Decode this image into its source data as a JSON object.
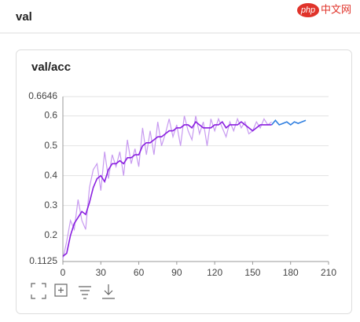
{
  "header": {
    "title": "val"
  },
  "watermark": {
    "logo": "php",
    "text": "中文网"
  },
  "chart_data": {
    "type": "line",
    "title": "val/acc",
    "x": [
      0,
      3,
      6,
      9,
      12,
      15,
      18,
      21,
      24,
      27,
      30,
      33,
      36,
      39,
      42,
      45,
      48,
      51,
      54,
      57,
      60,
      63,
      66,
      69,
      72,
      75,
      78,
      81,
      84,
      87,
      90,
      93,
      96,
      99,
      102,
      105,
      108,
      111,
      114,
      117,
      120,
      123,
      126,
      129,
      132,
      135,
      138,
      141,
      144,
      147,
      150,
      153,
      156,
      159,
      162,
      165,
      168,
      171,
      174,
      177,
      180,
      183,
      186,
      189,
      192
    ],
    "series": [
      {
        "color": "#c79af0",
        "values": [
          0.12,
          0.18,
          0.25,
          0.22,
          0.32,
          0.25,
          0.22,
          0.36,
          0.42,
          0.44,
          0.35,
          0.48,
          0.39,
          0.47,
          0.43,
          0.48,
          0.4,
          0.52,
          0.44,
          0.49,
          0.43,
          0.56,
          0.47,
          0.55,
          0.47,
          0.58,
          0.5,
          0.54,
          0.59,
          0.53,
          0.57,
          0.5,
          0.6,
          0.55,
          0.52,
          0.6,
          0.54,
          0.58,
          0.5,
          0.59,
          0.55,
          0.59,
          0.56,
          0.53,
          0.58,
          0.55,
          0.59,
          0.56,
          0.58,
          0.54,
          0.55,
          0.58,
          0.56,
          0.59,
          0.57,
          0.58,
          null,
          null,
          null,
          null,
          null,
          null,
          null,
          null,
          null
        ]
      },
      {
        "color": "#8a1fe0",
        "values": [
          0.13,
          0.14,
          0.2,
          0.24,
          0.26,
          0.28,
          0.27,
          0.31,
          0.36,
          0.39,
          0.4,
          0.38,
          0.42,
          0.44,
          0.44,
          0.45,
          0.44,
          0.46,
          0.46,
          0.47,
          0.47,
          0.5,
          0.51,
          0.51,
          0.52,
          0.53,
          0.53,
          0.54,
          0.55,
          0.55,
          0.56,
          0.56,
          0.57,
          0.57,
          0.56,
          0.58,
          0.57,
          0.56,
          0.56,
          0.56,
          0.57,
          0.57,
          0.58,
          0.56,
          0.57,
          0.57,
          0.57,
          0.58,
          0.57,
          0.56,
          0.55,
          0.56,
          0.57,
          0.57,
          0.57,
          0.57,
          null,
          null,
          null,
          null,
          null,
          null,
          null,
          null,
          null
        ]
      },
      {
        "color": "#2f7fe0",
        "values": [
          null,
          null,
          null,
          null,
          null,
          null,
          null,
          null,
          null,
          null,
          null,
          null,
          null,
          null,
          null,
          null,
          null,
          null,
          null,
          null,
          null,
          null,
          null,
          null,
          null,
          null,
          null,
          null,
          null,
          null,
          null,
          null,
          null,
          null,
          null,
          null,
          null,
          null,
          null,
          null,
          null,
          null,
          null,
          null,
          null,
          null,
          null,
          null,
          null,
          null,
          null,
          null,
          null,
          null,
          null,
          0.57,
          0.585,
          0.57,
          0.575,
          0.58,
          0.57,
          0.58,
          0.575,
          0.58,
          0.585
        ]
      }
    ],
    "xlim": [
      0,
      210
    ],
    "xticks": [
      0,
      30,
      60,
      90,
      120,
      150,
      180,
      210
    ],
    "ylim": [
      0.1125,
      0.6646
    ],
    "yticks": [
      0.1125,
      0.2,
      0.3,
      0.4,
      0.5,
      0.6,
      0.6646
    ],
    "grid": true
  }
}
